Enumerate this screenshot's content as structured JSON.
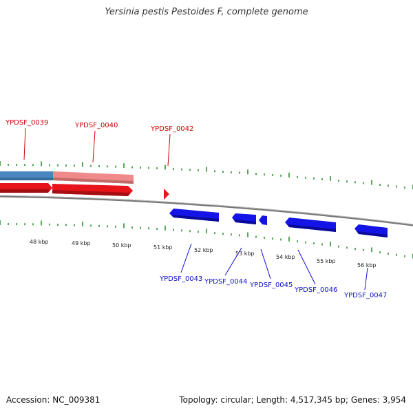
{
  "title": "Yersinia pestis Pestoides F, complete genome",
  "footer": {
    "accession_text": "Accession: NC_009381",
    "summary_text": "Topology: circular; Length: 4,517,345 bp; Genes: 3,954"
  },
  "colors": {
    "forward_gene": "#e8141b",
    "reverse_gene": "#1414e6",
    "tick": "#1e8a1e",
    "backbone": "#888888",
    "feature_blue": "#4a86c0",
    "feature_pink": "#f08a8a"
  },
  "kbp_labels": [
    "48 kbp",
    "49 kbp",
    "50 kbp",
    "51 kbp",
    "52 kbp",
    "53 kbp",
    "54 kbp",
    "55 kbp",
    "56 kbp"
  ],
  "genes": {
    "forward": [
      {
        "name": "YPDSF_0039"
      },
      {
        "name": "YPDSF_0040"
      },
      {
        "name": "YPDSF_0042"
      }
    ],
    "reverse": [
      {
        "name": "YPDSF_0043"
      },
      {
        "name": "YPDSF_0044"
      },
      {
        "name": "YPDSF_0045"
      },
      {
        "name": "YPDSF_0046"
      },
      {
        "name": "YPDSF_0047"
      }
    ]
  }
}
